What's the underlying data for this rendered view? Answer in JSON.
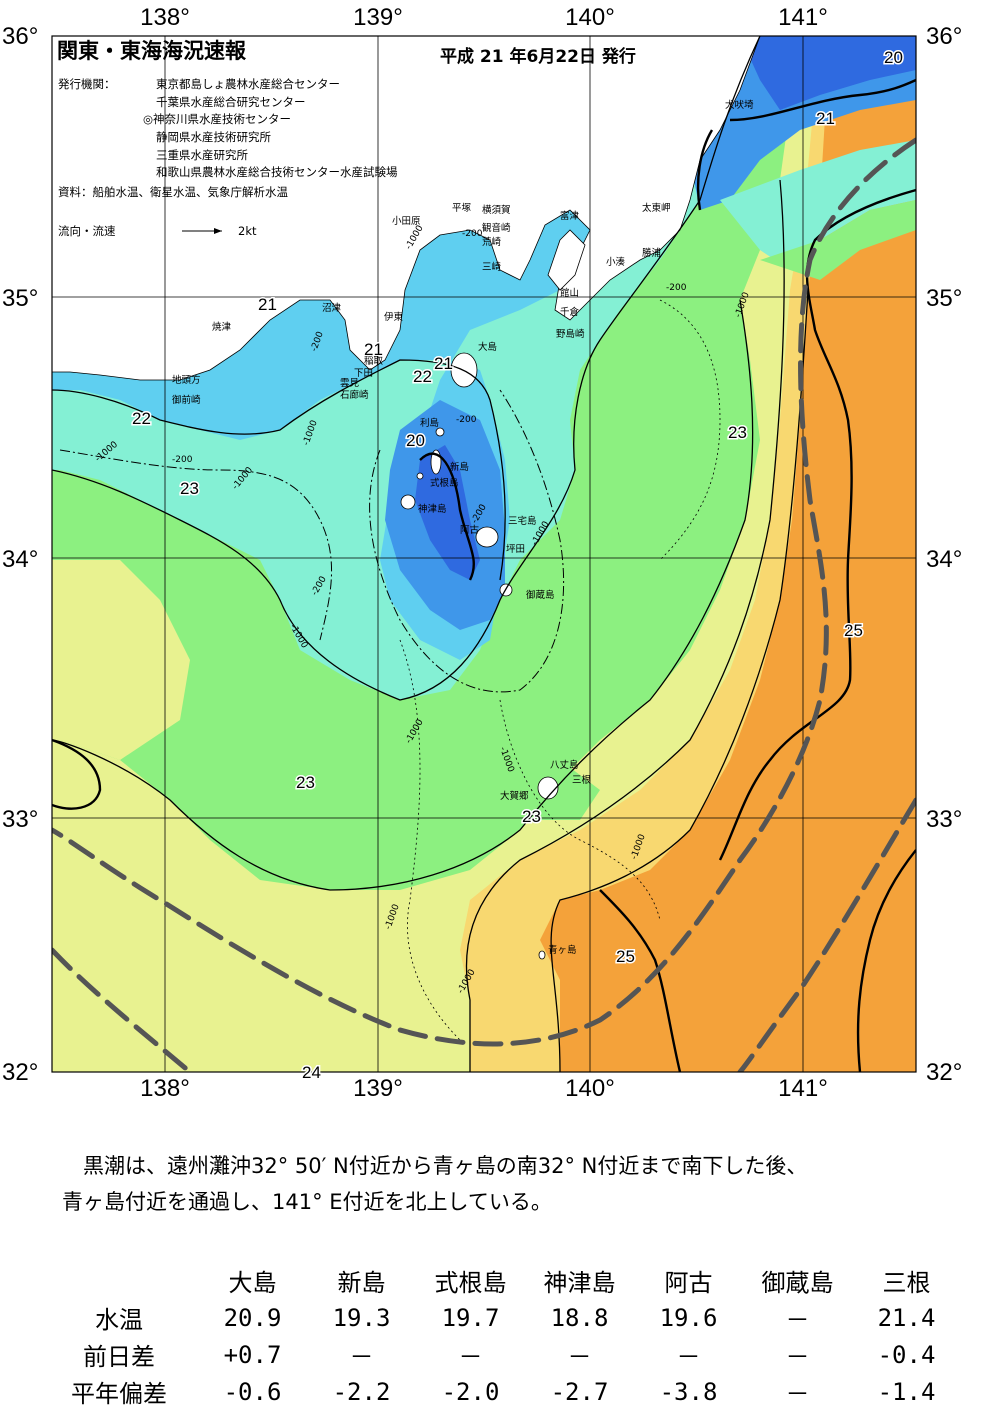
{
  "map": {
    "title": "関東・東海海況速報",
    "issue_date": "平成 21 年6月22日 発行",
    "issuer_label": "発行機関：",
    "issuers": [
      "東京都島しょ農林水産総合センター",
      "千葉県水産総合研究センター",
      "◎神奈川県水産技術センター",
      "静岡県水産技術研究所",
      "三重県水産研究所",
      "和歌山県農林水産総合技術センター水産試験場"
    ],
    "source": "資料：船舶水温、衛星水温、気象庁解析水温",
    "current_legend_label": "流向・流速",
    "current_legend_value": "2kt",
    "lon_labels": [
      "138°",
      "139°",
      "140°",
      "141°"
    ],
    "lat_labels": [
      "36°",
      "35°",
      "34°",
      "33°",
      "32°"
    ],
    "contour_labels": [
      "20",
      "21",
      "21",
      "21",
      "22",
      "21",
      "22",
      "20",
      "23",
      "23",
      "23",
      "23",
      "25",
      "25",
      "24"
    ],
    "depth_labels": [
      "-200",
      "-1000"
    ],
    "places": [
      "犬吠埼",
      "太東岬",
      "勝浦",
      "小湊",
      "富津",
      "館山",
      "千倉",
      "野島崎",
      "横須賀",
      "観音崎",
      "荒崎",
      "三崎",
      "平塚",
      "小田原",
      "沼津",
      "伊東",
      "焼津",
      "稲取",
      "下田",
      "雲見",
      "石廊崎",
      "地頭方",
      "御前崎",
      "大島",
      "利島",
      "新島",
      "式根島",
      "神津島",
      "三宅島",
      "阿古",
      "坪田",
      "御蔵島",
      "八丈島",
      "三根",
      "大賀郷",
      "青ヶ島"
    ],
    "colors": {
      "t19": "#2f6ae0",
      "t20": "#3f97ea",
      "t21": "#5fcff0",
      "t22": "#84f0d4",
      "t23": "#8cf080",
      "t24": "#e8f290",
      "t25": "#f8d870",
      "t26": "#f4a23a",
      "land": "#ffffff",
      "kuroshio_axis": "#555555"
    }
  },
  "description": "　黒潮は、遠州灘沖32° 50′ N付近から青ヶ島の南32° N付近まで南下した後、\n青ヶ島付近を通過し、141° E付近を北上している。",
  "table": {
    "stations": [
      "大島",
      "新島",
      "式根島",
      "神津島",
      "阿古",
      "御蔵島",
      "三根"
    ],
    "rows": [
      {
        "label": "水温",
        "values": [
          "20.9",
          "19.3",
          "19.7",
          "18.8",
          "19.6",
          "－",
          "21.4"
        ]
      },
      {
        "label": "前日差",
        "values": [
          "+0.7",
          "－",
          "－",
          "－",
          "－",
          "－",
          "-0.4"
        ]
      },
      {
        "label": "平年偏差",
        "values": [
          "-0.6",
          "-2.2",
          "-2.0",
          "-2.7",
          "-3.8",
          "－",
          "-1.4"
        ]
      }
    ]
  }
}
